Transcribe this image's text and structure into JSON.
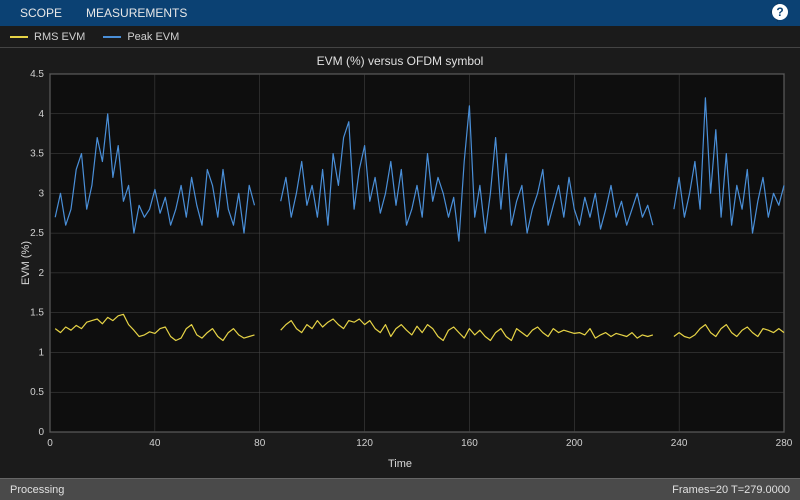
{
  "toolbar": {
    "tabs": [
      "SCOPE",
      "MEASUREMENTS"
    ],
    "help_icon": "?"
  },
  "legend": {
    "items": [
      {
        "label": "RMS EVM",
        "color": "#e6d346"
      },
      {
        "label": "Peak EVM",
        "color": "#4a8fd8"
      }
    ]
  },
  "chart": {
    "title": "EVM (%) versus OFDM symbol",
    "xlabel": "Time",
    "ylabel": "EVM (%)",
    "xlim": [
      0,
      280
    ],
    "ylim": [
      0,
      4.5
    ],
    "xtick_step": 40,
    "ytick_step": 0.5,
    "plot_bg": "#0e0e0e",
    "outer_bg": "#1b1b1b",
    "grid_color": "#4a4a4a",
    "axis_color": "#8a8a8a",
    "text_color": "#d8d8d8",
    "line_width": 1.2,
    "series": [
      {
        "name": "RMS EVM",
        "color": "#e6d346",
        "gaps_after_x": [
          78,
          230
        ],
        "gap_width": 8,
        "data": [
          [
            2,
            1.3
          ],
          [
            4,
            1.25
          ],
          [
            6,
            1.32
          ],
          [
            8,
            1.28
          ],
          [
            10,
            1.34
          ],
          [
            12,
            1.3
          ],
          [
            14,
            1.38
          ],
          [
            16,
            1.4
          ],
          [
            18,
            1.42
          ],
          [
            20,
            1.36
          ],
          [
            22,
            1.44
          ],
          [
            24,
            1.4
          ],
          [
            26,
            1.46
          ],
          [
            28,
            1.48
          ],
          [
            30,
            1.35
          ],
          [
            32,
            1.28
          ],
          [
            34,
            1.2
          ],
          [
            36,
            1.22
          ],
          [
            38,
            1.26
          ],
          [
            40,
            1.24
          ],
          [
            42,
            1.3
          ],
          [
            44,
            1.32
          ],
          [
            46,
            1.2
          ],
          [
            48,
            1.15
          ],
          [
            50,
            1.18
          ],
          [
            52,
            1.3
          ],
          [
            54,
            1.35
          ],
          [
            56,
            1.22
          ],
          [
            58,
            1.18
          ],
          [
            60,
            1.25
          ],
          [
            62,
            1.3
          ],
          [
            64,
            1.2
          ],
          [
            66,
            1.15
          ],
          [
            68,
            1.25
          ],
          [
            70,
            1.3
          ],
          [
            72,
            1.22
          ],
          [
            74,
            1.18
          ],
          [
            76,
            1.2
          ],
          [
            78,
            1.22
          ],
          [
            88,
            1.28
          ],
          [
            90,
            1.35
          ],
          [
            92,
            1.4
          ],
          [
            94,
            1.3
          ],
          [
            96,
            1.25
          ],
          [
            98,
            1.35
          ],
          [
            100,
            1.3
          ],
          [
            102,
            1.4
          ],
          [
            104,
            1.32
          ],
          [
            106,
            1.38
          ],
          [
            108,
            1.42
          ],
          [
            110,
            1.35
          ],
          [
            112,
            1.3
          ],
          [
            114,
            1.4
          ],
          [
            116,
            1.38
          ],
          [
            118,
            1.42
          ],
          [
            120,
            1.35
          ],
          [
            122,
            1.4
          ],
          [
            124,
            1.3
          ],
          [
            126,
            1.25
          ],
          [
            128,
            1.35
          ],
          [
            130,
            1.2
          ],
          [
            132,
            1.3
          ],
          [
            134,
            1.35
          ],
          [
            136,
            1.28
          ],
          [
            138,
            1.22
          ],
          [
            140,
            1.33
          ],
          [
            142,
            1.25
          ],
          [
            144,
            1.35
          ],
          [
            146,
            1.3
          ],
          [
            148,
            1.2
          ],
          [
            150,
            1.15
          ],
          [
            152,
            1.28
          ],
          [
            154,
            1.32
          ],
          [
            156,
            1.25
          ],
          [
            158,
            1.18
          ],
          [
            160,
            1.3
          ],
          [
            162,
            1.22
          ],
          [
            164,
            1.28
          ],
          [
            166,
            1.2
          ],
          [
            168,
            1.15
          ],
          [
            170,
            1.25
          ],
          [
            172,
            1.3
          ],
          [
            174,
            1.2
          ],
          [
            176,
            1.15
          ],
          [
            178,
            1.3
          ],
          [
            180,
            1.25
          ],
          [
            182,
            1.2
          ],
          [
            184,
            1.28
          ],
          [
            186,
            1.32
          ],
          [
            188,
            1.25
          ],
          [
            190,
            1.2
          ],
          [
            192,
            1.3
          ],
          [
            194,
            1.25
          ],
          [
            196,
            1.28
          ],
          [
            198,
            1.26
          ],
          [
            200,
            1.24
          ],
          [
            202,
            1.25
          ],
          [
            204,
            1.22
          ],
          [
            206,
            1.3
          ],
          [
            208,
            1.18
          ],
          [
            210,
            1.22
          ],
          [
            212,
            1.25
          ],
          [
            214,
            1.2
          ],
          [
            216,
            1.24
          ],
          [
            218,
            1.22
          ],
          [
            220,
            1.2
          ],
          [
            222,
            1.25
          ],
          [
            224,
            1.18
          ],
          [
            226,
            1.22
          ],
          [
            228,
            1.2
          ],
          [
            230,
            1.22
          ],
          [
            238,
            1.2
          ],
          [
            240,
            1.25
          ],
          [
            242,
            1.2
          ],
          [
            244,
            1.18
          ],
          [
            246,
            1.22
          ],
          [
            248,
            1.3
          ],
          [
            250,
            1.35
          ],
          [
            252,
            1.25
          ],
          [
            254,
            1.2
          ],
          [
            256,
            1.3
          ],
          [
            258,
            1.35
          ],
          [
            260,
            1.25
          ],
          [
            262,
            1.2
          ],
          [
            264,
            1.28
          ],
          [
            266,
            1.32
          ],
          [
            268,
            1.25
          ],
          [
            270,
            1.2
          ],
          [
            272,
            1.3
          ],
          [
            274,
            1.28
          ],
          [
            276,
            1.25
          ],
          [
            278,
            1.3
          ],
          [
            280,
            1.25
          ]
        ]
      },
      {
        "name": "Peak EVM",
        "color": "#4a8fd8",
        "gaps_after_x": [
          78,
          230
        ],
        "gap_width": 8,
        "data": [
          [
            2,
            2.7
          ],
          [
            4,
            3.0
          ],
          [
            6,
            2.6
          ],
          [
            8,
            2.8
          ],
          [
            10,
            3.3
          ],
          [
            12,
            3.5
          ],
          [
            14,
            2.8
          ],
          [
            16,
            3.1
          ],
          [
            18,
            3.7
          ],
          [
            20,
            3.4
          ],
          [
            22,
            4.0
          ],
          [
            24,
            3.2
          ],
          [
            26,
            3.6
          ],
          [
            28,
            2.9
          ],
          [
            30,
            3.1
          ],
          [
            32,
            2.5
          ],
          [
            34,
            2.85
          ],
          [
            36,
            2.7
          ],
          [
            38,
            2.8
          ],
          [
            40,
            3.05
          ],
          [
            42,
            2.75
          ],
          [
            44,
            2.95
          ],
          [
            46,
            2.6
          ],
          [
            48,
            2.8
          ],
          [
            50,
            3.1
          ],
          [
            52,
            2.7
          ],
          [
            54,
            3.2
          ],
          [
            56,
            2.85
          ],
          [
            58,
            2.6
          ],
          [
            60,
            3.3
          ],
          [
            62,
            3.1
          ],
          [
            64,
            2.7
          ],
          [
            66,
            3.3
          ],
          [
            68,
            2.8
          ],
          [
            70,
            2.6
          ],
          [
            72,
            3.0
          ],
          [
            74,
            2.5
          ],
          [
            76,
            3.1
          ],
          [
            78,
            2.85
          ],
          [
            88,
            2.9
          ],
          [
            90,
            3.2
          ],
          [
            92,
            2.7
          ],
          [
            94,
            3.0
          ],
          [
            96,
            3.4
          ],
          [
            98,
            2.85
          ],
          [
            100,
            3.1
          ],
          [
            102,
            2.7
          ],
          [
            104,
            3.3
          ],
          [
            106,
            2.6
          ],
          [
            108,
            3.5
          ],
          [
            110,
            3.1
          ],
          [
            112,
            3.7
          ],
          [
            114,
            3.9
          ],
          [
            116,
            2.8
          ],
          [
            118,
            3.3
          ],
          [
            120,
            3.6
          ],
          [
            122,
            2.9
          ],
          [
            124,
            3.2
          ],
          [
            126,
            2.75
          ],
          [
            128,
            3.0
          ],
          [
            130,
            3.4
          ],
          [
            132,
            2.85
          ],
          [
            134,
            3.3
          ],
          [
            136,
            2.6
          ],
          [
            138,
            2.8
          ],
          [
            140,
            3.1
          ],
          [
            142,
            2.7
          ],
          [
            144,
            3.5
          ],
          [
            146,
            2.9
          ],
          [
            148,
            3.2
          ],
          [
            150,
            3.0
          ],
          [
            152,
            2.7
          ],
          [
            154,
            2.95
          ],
          [
            156,
            2.4
          ],
          [
            158,
            3.4
          ],
          [
            160,
            4.1
          ],
          [
            162,
            2.7
          ],
          [
            164,
            3.1
          ],
          [
            166,
            2.5
          ],
          [
            168,
            3.0
          ],
          [
            170,
            3.7
          ],
          [
            172,
            2.8
          ],
          [
            174,
            3.5
          ],
          [
            176,
            2.6
          ],
          [
            178,
            2.9
          ],
          [
            180,
            3.1
          ],
          [
            182,
            2.5
          ],
          [
            184,
            2.8
          ],
          [
            186,
            3.0
          ],
          [
            188,
            3.3
          ],
          [
            190,
            2.6
          ],
          [
            192,
            2.85
          ],
          [
            194,
            3.1
          ],
          [
            196,
            2.7
          ],
          [
            198,
            3.2
          ],
          [
            200,
            2.8
          ],
          [
            202,
            2.6
          ],
          [
            204,
            2.95
          ],
          [
            206,
            2.7
          ],
          [
            208,
            3.0
          ],
          [
            210,
            2.55
          ],
          [
            212,
            2.8
          ],
          [
            214,
            3.1
          ],
          [
            216,
            2.7
          ],
          [
            218,
            2.9
          ],
          [
            220,
            2.6
          ],
          [
            222,
            2.8
          ],
          [
            224,
            3.0
          ],
          [
            226,
            2.7
          ],
          [
            228,
            2.85
          ],
          [
            230,
            2.6
          ],
          [
            238,
            2.8
          ],
          [
            240,
            3.2
          ],
          [
            242,
            2.7
          ],
          [
            244,
            3.0
          ],
          [
            246,
            3.4
          ],
          [
            248,
            2.8
          ],
          [
            250,
            4.2
          ],
          [
            252,
            3.0
          ],
          [
            254,
            3.8
          ],
          [
            256,
            2.7
          ],
          [
            258,
            3.5
          ],
          [
            260,
            2.6
          ],
          [
            262,
            3.1
          ],
          [
            264,
            2.8
          ],
          [
            266,
            3.3
          ],
          [
            268,
            2.5
          ],
          [
            270,
            2.9
          ],
          [
            272,
            3.2
          ],
          [
            274,
            2.7
          ],
          [
            276,
            3.0
          ],
          [
            278,
            2.85
          ],
          [
            280,
            3.1
          ]
        ]
      }
    ]
  },
  "statusbar": {
    "left": "Processing",
    "right": "Frames=20  T=279.0000"
  }
}
